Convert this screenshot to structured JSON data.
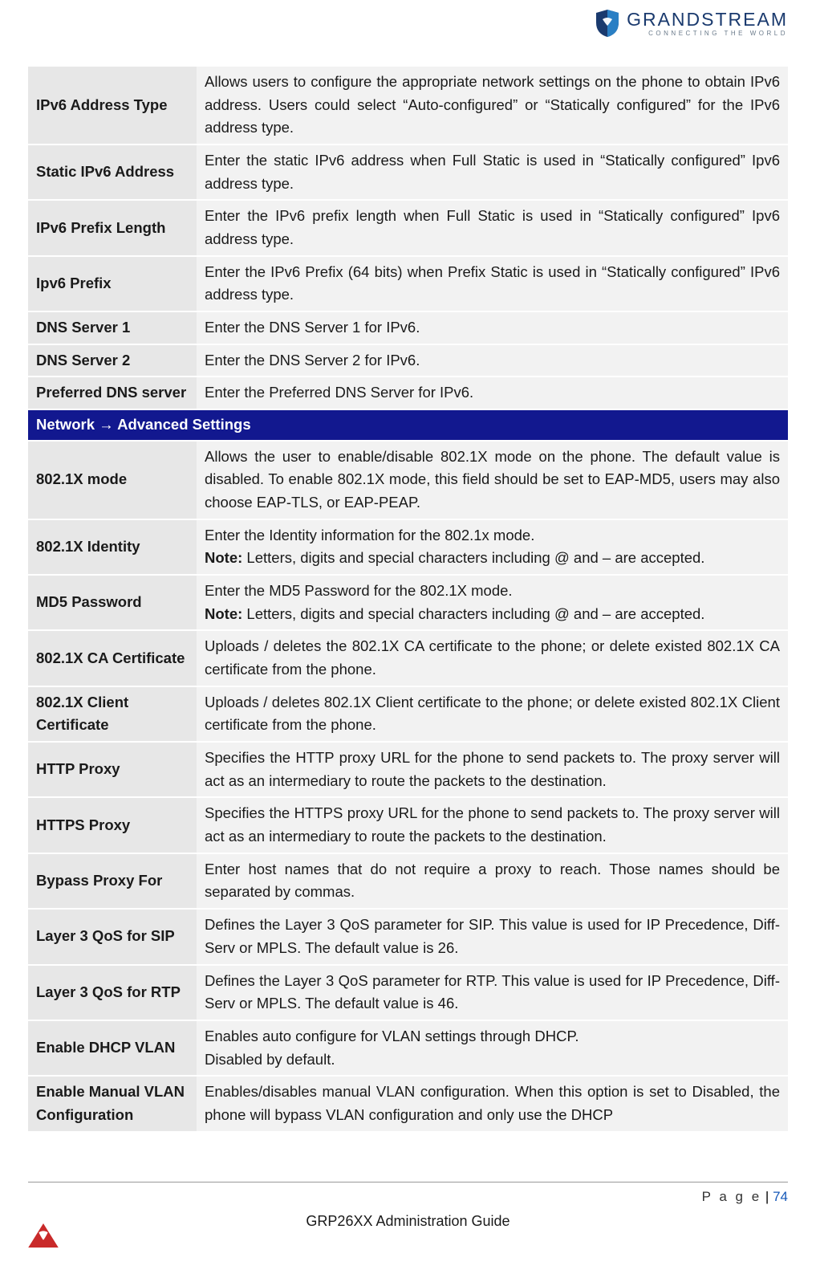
{
  "header": {
    "brand_name": "GRANDSTREAM",
    "brand_tagline": "CONNECTING THE WORLD",
    "logo_primary": "#1a3a6e",
    "logo_accent": "#2a7fc4"
  },
  "colors": {
    "label_bg": "#e7e7e7",
    "desc_bg": "#f2f2f2",
    "section_bg": "#12188f",
    "section_fg": "#ffffff",
    "text": "#1a1a1a",
    "page_num": "#1558b8"
  },
  "rows": [
    {
      "label": "IPv6 Address Type",
      "desc": "Allows users to configure the appropriate network settings on the phone to obtain IPv6 address. Users could select “Auto-configured” or “Statically configured” for the IPv6 address type."
    },
    {
      "label": "Static IPv6 Address",
      "desc": "Enter the static IPv6 address when Full Static is used in “Statically configured” Ipv6 address type."
    },
    {
      "label": "IPv6 Prefix Length",
      "desc": "Enter the IPv6 prefix length when Full Static is used in “Statically configured” Ipv6 address type."
    },
    {
      "label": "Ipv6 Prefix",
      "desc": "Enter the IPv6 Prefix (64 bits) when Prefix Static is used in “Statically configured” IPv6 address type."
    },
    {
      "label": "DNS Server 1",
      "desc": "Enter the DNS Server 1 for IPv6."
    },
    {
      "label": "DNS Server 2",
      "desc": "Enter the DNS Server 2 for IPv6."
    },
    {
      "label": "Preferred DNS server",
      "desc": "Enter the Preferred DNS Server for IPv6."
    }
  ],
  "section_header": "Network → Advanced Settings",
  "rows2": [
    {
      "label": "802.1X mode",
      "desc": "Allows the user to enable/disable 802.1X mode on the phone. The default value is disabled. To enable 802.1X mode, this field should be set to EAP-MD5, users may also choose EAP-TLS, or EAP-PEAP."
    },
    {
      "label": "802.1X Identity",
      "desc_line1": "Enter the Identity information for the 802.1x mode.",
      "note_label": "Note:",
      "note_text": " Letters, digits and special characters including @ and – are accepted."
    },
    {
      "label": "MD5 Password",
      "desc_line1": "Enter the MD5 Password for the 802.1X mode.",
      "note_label": "Note:",
      "note_text": " Letters, digits and special characters including @ and – are accepted."
    },
    {
      "label": "802.1X CA Certificate",
      "desc": "Uploads / deletes the 802.1X CA certificate to the phone; or delete existed 802.1X CA certificate from the phone."
    },
    {
      "label": "802.1X Client Certificate",
      "desc": "Uploads / deletes 802.1X Client certificate to the phone; or delete existed 802.1X Client certificate from the phone."
    },
    {
      "label": "HTTP Proxy",
      "desc": "Specifies the HTTP proxy URL for the phone to send packets to. The proxy server will act as an intermediary to route the packets to the destination."
    },
    {
      "label": "HTTPS Proxy",
      "desc": "Specifies the HTTPS proxy URL for the phone to send packets to. The proxy server will act as an intermediary to route the packets to the destination."
    },
    {
      "label": "Bypass Proxy For",
      "desc": "Enter host names that do not require a proxy to reach. Those names should be separated by commas."
    },
    {
      "label": "Layer 3 QoS for SIP",
      "desc": "Defines the Layer 3 QoS parameter for SIP. This value is used for IP Precedence, Diff-Serv or MPLS. The default value is 26."
    },
    {
      "label": "Layer 3 QoS for RTP",
      "desc": "Defines the Layer 3 QoS parameter for RTP. This value is used for IP Precedence, Diff-Serv or MPLS. The default value is 46."
    },
    {
      "label": "Enable DHCP VLAN",
      "desc_line1": "Enables auto configure for VLAN settings through DHCP.",
      "desc_line2": "Disabled by default."
    },
    {
      "label": "Enable Manual VLAN Configuration",
      "desc": "Enables/disables manual VLAN configuration. When this option is set to Disabled, the phone will bypass VLAN configuration and only use the DHCP"
    }
  ],
  "footer": {
    "page_label": "P a g e",
    "separator": " | ",
    "page_num": "74",
    "title": "GRP26XX Administration Guide"
  }
}
